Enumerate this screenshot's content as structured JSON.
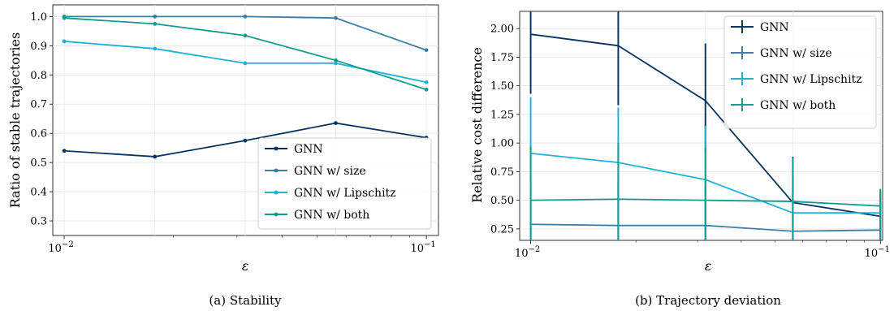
{
  "chart_data": [
    {
      "type": "line",
      "caption": "(a) Stability",
      "xlabel": "ε",
      "ylabel": "Ratio of stable trajectories",
      "xscale": "log",
      "xlim": [
        0.0093,
        0.108
      ],
      "ylim": [
        0.25,
        1.04
      ],
      "xticks": [
        {
          "v": 0.01,
          "base": "10",
          "exp": "−2"
        },
        {
          "v": 0.1,
          "base": "10",
          "exp": "−1"
        }
      ],
      "yticks": [
        0.3,
        0.4,
        0.5,
        0.6,
        0.7,
        0.8,
        0.9,
        1.0
      ],
      "ytick_labels": [
        "0.3",
        "0.4",
        "0.5",
        "0.6",
        "0.7",
        "0.8",
        "0.9",
        "1.0"
      ],
      "grid": true,
      "legend_position": "lower right",
      "x": [
        0.01,
        0.0178,
        0.0316,
        0.0562,
        0.1
      ],
      "series": [
        {
          "name": "GNN",
          "color": "#0b3560",
          "values": [
            0.54,
            0.52,
            0.575,
            0.635,
            0.585
          ]
        },
        {
          "name": "GNN w/ size",
          "color": "#3d7fa6",
          "values": [
            1.0,
            1.0,
            1.0,
            0.995,
            0.885
          ]
        },
        {
          "name": "GNN w/ Lipschitz",
          "color": "#1cb3d6",
          "values": [
            0.915,
            0.89,
            0.84,
            0.84,
            0.775
          ]
        },
        {
          "name": "GNN w/ both",
          "color": "#129e8f",
          "values": [
            0.995,
            0.975,
            0.935,
            0.85,
            0.75
          ]
        }
      ]
    },
    {
      "type": "line",
      "caption": "(b) Trajectory deviation",
      "xlabel": "ε",
      "ylabel": "Relative cost difference",
      "xscale": "log",
      "xlim": [
        0.0093,
        0.1015
      ],
      "ylim": [
        0.15,
        2.15
      ],
      "xticks": [
        {
          "v": 0.01,
          "base": "10",
          "exp": "−2"
        },
        {
          "v": 0.1,
          "base": "10",
          "exp": "−1"
        }
      ],
      "yticks": [
        0.25,
        0.5,
        0.75,
        1.0,
        1.25,
        1.5,
        1.75,
        2.0
      ],
      "ytick_labels": [
        "0.25",
        "0.50",
        "0.75",
        "1.00",
        "1.25",
        "1.50",
        "1.75",
        "2.00"
      ],
      "grid": true,
      "legend_position": "upper right",
      "x": [
        0.01,
        0.0178,
        0.0316,
        0.0562,
        0.1
      ],
      "series": [
        {
          "name": "GNN",
          "color": "#0b3560",
          "values": [
            1.95,
            1.85,
            1.37,
            0.48,
            0.36
          ],
          "err_low": [
            1.43,
            1.33,
            0.92,
            0.15,
            0.15
          ],
          "err_high": [
            2.15,
            2.15,
            1.87,
            0.88,
            0.58
          ]
        },
        {
          "name": "GNN w/ size",
          "color": "#3d7fa6",
          "values": [
            0.29,
            0.28,
            0.28,
            0.23,
            0.24
          ],
          "err_low": [
            0.15,
            0.15,
            0.15,
            0.15,
            0.15
          ],
          "err_high": [
            0.66,
            0.66,
            0.62,
            0.55,
            0.5
          ]
        },
        {
          "name": "GNN w/ Lipschitz",
          "color": "#1cb3d6",
          "values": [
            0.91,
            0.83,
            0.68,
            0.39,
            0.39
          ],
          "err_low": [
            0.15,
            0.15,
            0.15,
            0.15,
            0.15
          ],
          "err_high": [
            1.4,
            1.31,
            1.15,
            0.78,
            0.57
          ]
        },
        {
          "name": "GNN w/ both",
          "color": "#129e8f",
          "values": [
            0.5,
            0.51,
            0.5,
            0.49,
            0.45
          ],
          "err_low": [
            0.15,
            0.15,
            0.15,
            0.15,
            0.15
          ],
          "err_high": [
            0.97,
            1.0,
            0.96,
            0.87,
            0.6
          ]
        }
      ]
    }
  ]
}
